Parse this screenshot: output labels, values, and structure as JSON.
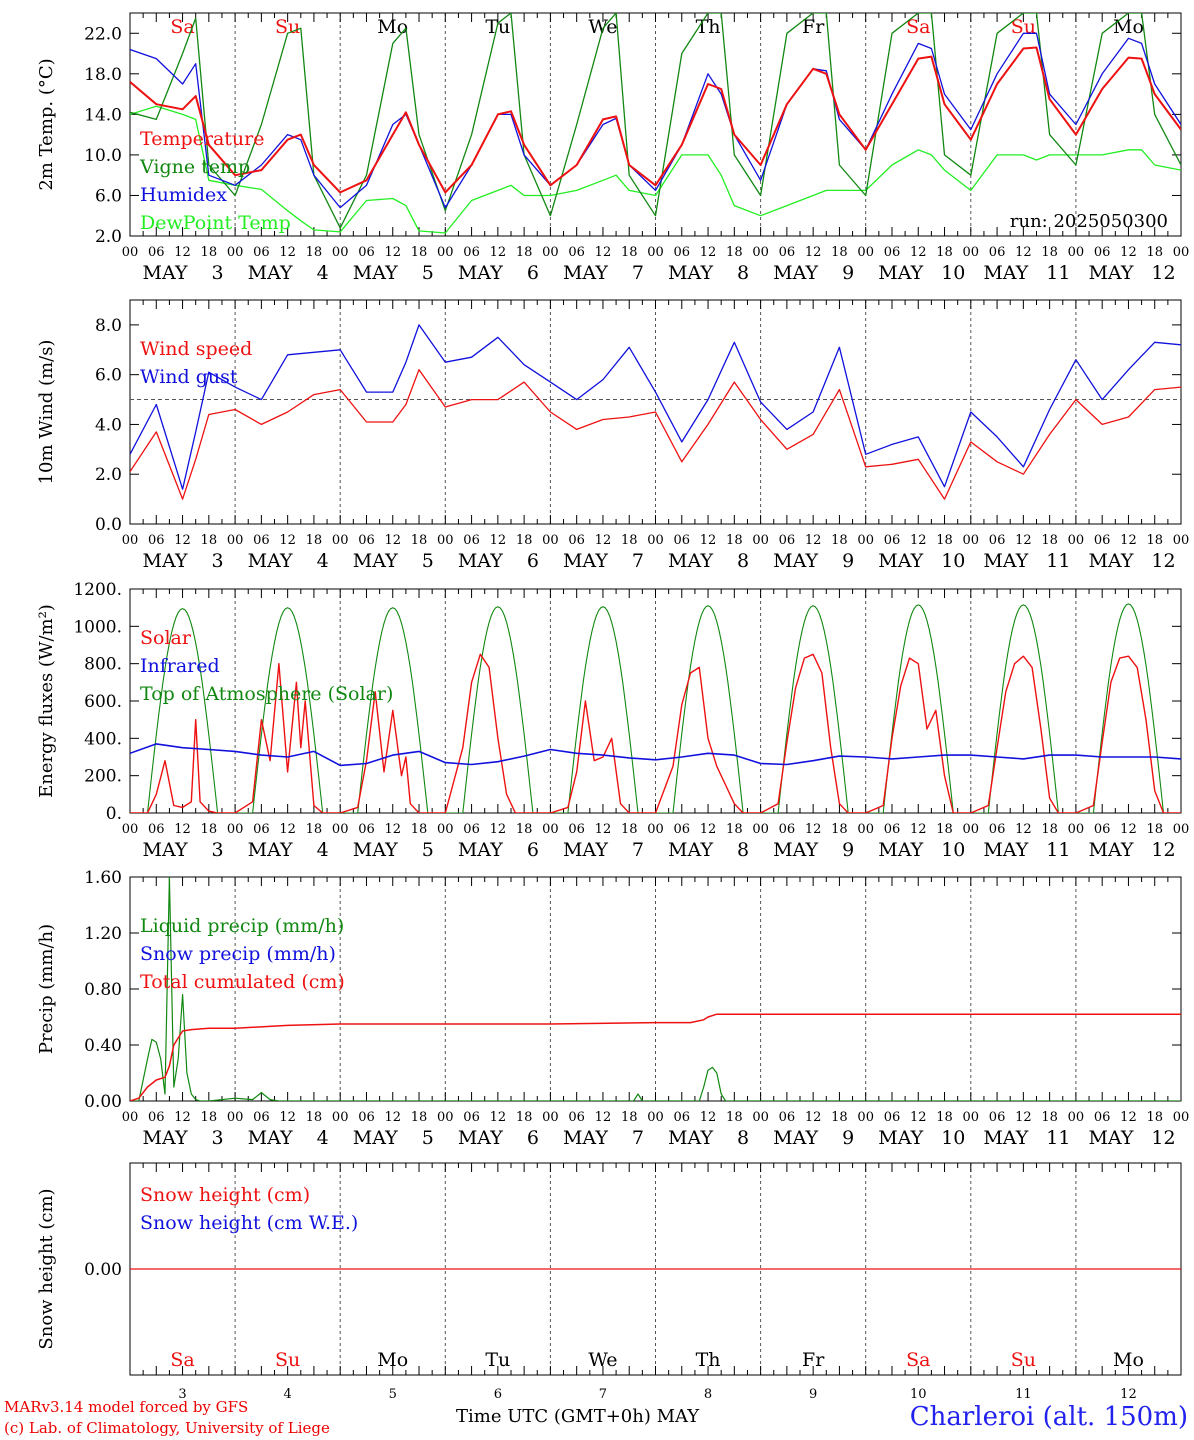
{
  "days": [
    {
      "abbr": "Sa",
      "num": "3",
      "weekend": true
    },
    {
      "abbr": "Su",
      "num": "4",
      "weekend": true
    },
    {
      "abbr": "Mo",
      "num": "5",
      "weekend": false
    },
    {
      "abbr": "Tu",
      "num": "6",
      "weekend": false
    },
    {
      "abbr": "We",
      "num": "7",
      "weekend": false
    },
    {
      "abbr": "Th",
      "num": "8",
      "weekend": false
    },
    {
      "abbr": "Fr",
      "num": "9",
      "weekend": false
    },
    {
      "abbr": "Sa",
      "num": "10",
      "weekend": true
    },
    {
      "abbr": "Su",
      "num": "11",
      "weekend": true
    },
    {
      "abbr": "Mo",
      "num": "12",
      "weekend": false
    }
  ],
  "month": "MAY",
  "hour_ticks": [
    "00",
    "06",
    "12",
    "18"
  ],
  "final_tick": "00",
  "colors": {
    "red": "#ee1111",
    "green": "#118811",
    "blue": "#1111dd",
    "lightgreen": "#22ee22",
    "weekend": "#ee1111",
    "dash": "#555555"
  },
  "footer": {
    "model": "MARv3.14 model forced by GFS",
    "copyright": "(c) Lab. of Climatology, University of Liege",
    "time_label": "Time UTC (GMT+0h)",
    "month_label": "MAY",
    "station": "Charleroi (alt. 150m)"
  },
  "chart_data": [
    {
      "type": "line",
      "ylabel": "2m Temp. (°C)",
      "ylim": [
        2,
        24
      ],
      "yticks": [
        "2.0",
        "6.0",
        "10.0",
        "14.0",
        "18.0",
        "22.0"
      ],
      "ytick_values": [
        2,
        6,
        10,
        14,
        18,
        22
      ],
      "annotation": "run: 2025050300",
      "legend": [
        {
          "label": "Temperature",
          "color": "red"
        },
        {
          "label": "Vigne temp",
          "color": "green"
        },
        {
          "label": "Humidex",
          "color": "blue"
        },
        {
          "label": "DewPoint Temp",
          "color": "lightgreen"
        }
      ],
      "x_hours": [
        0,
        6,
        12,
        15,
        18,
        24,
        30,
        36,
        39,
        42,
        48,
        54,
        60,
        63,
        66,
        72,
        78,
        84,
        87,
        90,
        96,
        102,
        108,
        111,
        114,
        120,
        126,
        132,
        135,
        138,
        144,
        150,
        156,
        159,
        162,
        168,
        174,
        180,
        183,
        186,
        192,
        198,
        204,
        207,
        210,
        216,
        222,
        228,
        231,
        234,
        240
      ],
      "series": [
        {
          "name": "Temperature",
          "color": "red",
          "values": [
            17.2,
            15,
            14.5,
            15.8,
            11,
            8,
            8.5,
            11.5,
            12,
            9,
            6.3,
            7.5,
            12,
            14.2,
            11,
            6.3,
            9,
            14,
            14.3,
            11,
            7,
            9,
            13.5,
            13.8,
            9,
            7,
            11,
            17,
            16.5,
            12,
            9,
            15,
            18.5,
            18,
            14,
            10.5,
            15,
            19.5,
            19.7,
            15,
            11.5,
            17,
            20.5,
            20.6,
            15.5,
            12,
            16.5,
            19.6,
            19.5,
            16,
            12.5
          ]
        },
        {
          "name": "Vigne temp",
          "color": "green",
          "values": [
            14.2,
            13.5,
            20,
            23.5,
            9,
            6,
            13,
            22,
            22.5,
            8,
            2.8,
            8,
            21,
            22.5,
            12,
            4.5,
            12,
            23,
            24,
            10,
            4,
            13,
            22.5,
            24,
            8,
            4,
            20,
            24,
            24,
            10,
            6,
            22,
            24,
            24,
            9,
            6,
            22,
            24,
            24,
            10,
            8,
            22,
            24,
            24,
            12,
            9,
            22,
            24,
            24,
            14,
            9
          ]
        },
        {
          "name": "Humidex",
          "color": "blue",
          "values": [
            20.4,
            19.5,
            17,
            19,
            8,
            7,
            9,
            12,
            11.5,
            8,
            4.8,
            7,
            13,
            14,
            11,
            4.8,
            9,
            14,
            14,
            10,
            7,
            9,
            13,
            13.6,
            9,
            6.5,
            11,
            18,
            16,
            12,
            7.5,
            15,
            18.5,
            18.3,
            13.5,
            10.5,
            16,
            21,
            20.5,
            16,
            12.5,
            18,
            22,
            22,
            16,
            13,
            18,
            21.5,
            21,
            17,
            13
          ]
        },
        {
          "name": "DewPoint Temp",
          "color": "lightgreen",
          "values": [
            14,
            14.8,
            14,
            13.5,
            7.5,
            7,
            6.6,
            4.5,
            3.5,
            2.6,
            2.4,
            5.5,
            5.7,
            5,
            2.5,
            2.3,
            5.5,
            6.5,
            7,
            6,
            6,
            6.5,
            7.5,
            8,
            6.5,
            6,
            10,
            10,
            8,
            5,
            4,
            5,
            6,
            6.5,
            6.5,
            6.5,
            9,
            10.5,
            10,
            8.5,
            6.5,
            10,
            10,
            9.5,
            10,
            10,
            10,
            10.5,
            10.5,
            9,
            8.5
          ]
        }
      ]
    },
    {
      "type": "line",
      "ylabel": "10m Wind (m/s)",
      "ylim": [
        0,
        9
      ],
      "yticks": [
        "0.0",
        "2.0",
        "4.0",
        "6.0",
        "8.0"
      ],
      "ytick_values": [
        0,
        2,
        4,
        6,
        8
      ],
      "reference_line": 5,
      "legend": [
        {
          "label": "Wind speed",
          "color": "red"
        },
        {
          "label": "Wind gust",
          "color": "blue"
        }
      ],
      "x_hours": [
        0,
        6,
        12,
        15,
        18,
        24,
        30,
        36,
        42,
        48,
        54,
        60,
        63,
        66,
        72,
        78,
        84,
        90,
        96,
        102,
        108,
        114,
        120,
        126,
        132,
        138,
        144,
        150,
        156,
        162,
        168,
        174,
        180,
        186,
        192,
        198,
        204,
        210,
        216,
        222,
        228,
        234,
        240
      ],
      "series": [
        {
          "name": "Wind speed",
          "color": "red",
          "values": [
            2.1,
            3.7,
            1,
            2.6,
            4.4,
            4.6,
            4,
            4.5,
            5.2,
            5.4,
            4.1,
            4.1,
            4.8,
            6.2,
            4.7,
            5,
            5,
            5.7,
            4.5,
            3.8,
            4.2,
            4.3,
            4.5,
            2.5,
            4,
            5.7,
            4.2,
            3,
            3.6,
            5.4,
            2.3,
            2.4,
            2.6,
            1,
            3.3,
            2.5,
            2,
            3.6,
            5,
            4,
            4.3,
            5.4,
            5.5
          ]
        },
        {
          "name": "Wind gust",
          "color": "blue",
          "values": [
            2.8,
            4.8,
            1.4,
            3.7,
            6.1,
            5.5,
            5,
            6.8,
            6.9,
            7,
            5.3,
            5.3,
            6.5,
            8,
            6.5,
            6.7,
            7.5,
            6.4,
            5.7,
            5,
            5.8,
            7.1,
            5.3,
            3.3,
            5,
            7.3,
            4.9,
            3.8,
            4.5,
            7.1,
            2.8,
            3.2,
            3.5,
            1.5,
            4.5,
            3.5,
            2.3,
            4.6,
            6.6,
            5,
            6.2,
            7.3,
            7.2
          ]
        }
      ]
    },
    {
      "type": "line",
      "ylabel": "Energy fluxes (W/m²)",
      "ylim": [
        0,
        1200
      ],
      "yticks": [
        "0.",
        "200.",
        "400.",
        "600.",
        "800.",
        "1000.",
        "1200."
      ],
      "ytick_values": [
        0,
        200,
        400,
        600,
        800,
        1000,
        1200
      ],
      "legend": [
        {
          "label": "Solar",
          "color": "red"
        },
        {
          "label": "Infrared",
          "color": "blue"
        },
        {
          "label": "Top of Atmosphere (Solar)",
          "color": "green"
        }
      ],
      "toa_peaks": [
        1095,
        1100,
        1100,
        1105,
        1105,
        1110,
        1110,
        1115,
        1115,
        1120
      ],
      "solar_x_hours": [
        0,
        4,
        6,
        8,
        10,
        12,
        14,
        15,
        16,
        18,
        20,
        24,
        28,
        30,
        32,
        34,
        36,
        38,
        39,
        40,
        42,
        44,
        48,
        52,
        54,
        56,
        58,
        60,
        62,
        63,
        64,
        66,
        68,
        72,
        76,
        78,
        80,
        82,
        84,
        86,
        88,
        90,
        92,
        96,
        100,
        102,
        104,
        106,
        108,
        110,
        112,
        114,
        116,
        120,
        124,
        126,
        128,
        130,
        132,
        134,
        136,
        138,
        140,
        144,
        148,
        150,
        152,
        154,
        156,
        158,
        160,
        162,
        164,
        168,
        172,
        174,
        176,
        178,
        180,
        182,
        184,
        186,
        188,
        192,
        196,
        198,
        200,
        202,
        204,
        206,
        208,
        210,
        212,
        216,
        220,
        222,
        224,
        226,
        228,
        230,
        232,
        234,
        236,
        240
      ],
      "solar_values": [
        0,
        0,
        100,
        280,
        40,
        30,
        60,
        500,
        60,
        10,
        0,
        0,
        60,
        500,
        280,
        800,
        220,
        700,
        350,
        600,
        40,
        0,
        0,
        30,
        280,
        650,
        220,
        550,
        200,
        300,
        50,
        0,
        0,
        0,
        350,
        700,
        850,
        780,
        400,
        100,
        0,
        0,
        0,
        0,
        30,
        220,
        600,
        280,
        300,
        400,
        50,
        0,
        0,
        0,
        250,
        580,
        750,
        780,
        400,
        250,
        150,
        50,
        0,
        0,
        50,
        380,
        670,
        830,
        850,
        750,
        350,
        50,
        0,
        0,
        40,
        400,
        680,
        830,
        800,
        450,
        550,
        200,
        0,
        0,
        40,
        350,
        650,
        800,
        840,
        780,
        450,
        80,
        0,
        0,
        40,
        380,
        700,
        830,
        840,
        780,
        500,
        120,
        0,
        0
      ],
      "infrared_x_hours": [
        0,
        6,
        12,
        18,
        24,
        30,
        36,
        42,
        48,
        54,
        60,
        66,
        72,
        78,
        84,
        90,
        96,
        102,
        108,
        114,
        120,
        126,
        132,
        138,
        144,
        150,
        156,
        162,
        168,
        174,
        180,
        186,
        192,
        198,
        204,
        210,
        216,
        222,
        228,
        234,
        240
      ],
      "infrared_values": [
        320,
        370,
        350,
        340,
        330,
        310,
        300,
        330,
        255,
        265,
        310,
        330,
        270,
        260,
        275,
        305,
        340,
        320,
        310,
        295,
        285,
        300,
        320,
        310,
        265,
        260,
        280,
        305,
        300,
        290,
        300,
        310,
        310,
        300,
        290,
        310,
        310,
        300,
        300,
        300,
        290
      ]
    },
    {
      "type": "line",
      "ylabel": "Precip (mm/h)",
      "ylim": [
        0,
        1.6
      ],
      "yticks": [
        "0.00",
        "0.40",
        "0.80",
        "1.20",
        "1.60"
      ],
      "ytick_values": [
        0,
        0.4,
        0.8,
        1.2,
        1.6
      ],
      "legend": [
        {
          "label": "Liquid precip (mm/h)",
          "color": "green"
        },
        {
          "label": "Snow precip (mm/h)",
          "color": "blue"
        },
        {
          "label": "Total cumulated (cm)",
          "color": "red"
        }
      ],
      "liquid_x_hours": [
        0,
        2,
        4,
        5,
        6,
        7,
        8,
        9,
        10,
        11,
        12,
        13,
        14,
        15,
        16,
        18,
        24,
        28,
        30,
        32,
        34,
        48,
        115,
        116,
        117,
        130,
        131,
        132,
        133,
        134,
        135,
        136,
        140,
        240
      ],
      "liquid_values": [
        0,
        0,
        0.3,
        0.44,
        0.42,
        0.3,
        0.05,
        1.6,
        0.1,
        0.3,
        0.76,
        0.2,
        0.05,
        0.01,
        0,
        0,
        0.02,
        0.01,
        0.06,
        0.01,
        0,
        0,
        0,
        0.05,
        0,
        0,
        0.1,
        0.22,
        0.24,
        0.2,
        0.05,
        0,
        0,
        0
      ],
      "cumulated_x_hours": [
        0,
        2,
        4,
        6,
        8,
        9,
        10,
        11,
        12,
        14,
        18,
        24,
        36,
        48,
        72,
        96,
        120,
        128,
        131,
        132,
        134,
        150,
        168,
        192,
        216,
        240
      ],
      "cumulated_values": [
        0,
        0.02,
        0.1,
        0.15,
        0.17,
        0.25,
        0.4,
        0.45,
        0.5,
        0.51,
        0.52,
        0.52,
        0.54,
        0.55,
        0.55,
        0.55,
        0.56,
        0.56,
        0.58,
        0.6,
        0.62,
        0.62,
        0.62,
        0.62,
        0.62,
        0.62
      ]
    },
    {
      "type": "line",
      "ylabel": "Snow height (cm)",
      "ylim": [
        -1,
        1
      ],
      "yticks": [
        "0.00"
      ],
      "ytick_values": [
        0
      ],
      "legend": [
        {
          "label": "Snow height (cm)",
          "color": "red"
        },
        {
          "label": "Snow height (cm W.E.)",
          "color": "blue"
        }
      ],
      "x_hours": [
        0,
        240
      ],
      "series": [
        {
          "name": "Snow height (cm)",
          "color": "red",
          "values": [
            0,
            0
          ]
        }
      ]
    }
  ]
}
